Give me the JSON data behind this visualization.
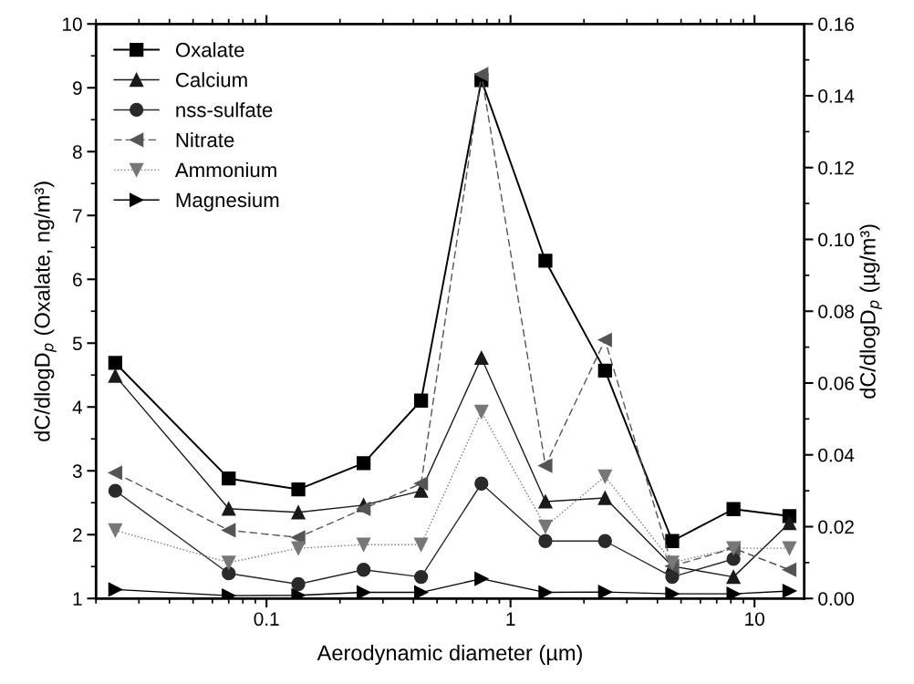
{
  "chart_data": {
    "type": "line",
    "xlabel": "Aerodynamic diameter (µm)",
    "ylabel": "dC/dlogD$_{p}$ (Oxalate, ng/m³)",
    "y2label": "dC/dlogD$_{p}$ (µg/m³)",
    "x": [
      0.024,
      0.07,
      0.135,
      0.25,
      0.43,
      0.76,
      1.39,
      2.44,
      4.6,
      8.2,
      13.9
    ],
    "log": "x",
    "xlim": [
      0.02,
      16
    ],
    "xticks": [
      {
        "value": 0.1,
        "label": "0.1"
      },
      1,
      10
    ],
    "ylim": [
      1,
      10
    ],
    "yticks": [
      1,
      2,
      3,
      4,
      5,
      6,
      7,
      8,
      9,
      10
    ],
    "y2lim": [
      0,
      0.16
    ],
    "y2ticks": [
      {
        "value": 0,
        "label": "0.00"
      },
      {
        "value": 0.02,
        "label": "0.02"
      },
      {
        "value": 0.04,
        "label": "0.04"
      },
      {
        "value": 0.06,
        "label": "0.06"
      },
      {
        "value": 0.08,
        "label": "0.08"
      },
      {
        "value": 0.1,
        "label": "0.10"
      },
      {
        "value": 0.12,
        "label": "0.12"
      },
      {
        "value": 0.14,
        "label": "0.14"
      },
      {
        "value": 0.16,
        "label": "0.16"
      }
    ],
    "grid": false,
    "legend": "top left",
    "series": [
      {
        "name": "Oxalate",
        "color": "#000000",
        "marker": "square",
        "line_style": "solid",
        "values": [
          4.69,
          2.88,
          2.71,
          3.12,
          4.1,
          9.12,
          6.29,
          4.57,
          1.9,
          2.4,
          2.29
        ]
      },
      {
        "name": "Calcium",
        "color": "#1a1a1a",
        "marker": "triangle",
        "line_style": "solid",
        "axis": "y2",
        "values": [
          0.062,
          0.025,
          0.024,
          0.026,
          0.03,
          0.067,
          0.027,
          0.028,
          0.009,
          0.006,
          0.021
        ]
      },
      {
        "name": "nss-sulfate",
        "color": "#2a2a2a",
        "marker": "circle",
        "line_style": "solid",
        "axis": "y2",
        "values": [
          0.03,
          0.007,
          0.004,
          0.008,
          0.006,
          0.032,
          0.016,
          0.016,
          0.006,
          0.011,
          null
        ]
      },
      {
        "name": "Nitrate",
        "color": "#555555",
        "marker": "triangle-left",
        "line_style": "dashed",
        "axis": "y2",
        "values": [
          0.035,
          0.019,
          0.017,
          0.025,
          0.032,
          0.146,
          0.037,
          0.072,
          0.009,
          0.014,
          0.008
        ]
      },
      {
        "name": "Ammonium",
        "color": "#777777",
        "marker": "triangle-down",
        "line_style": "dotted",
        "axis": "y2",
        "values": [
          0.019,
          0.01,
          0.014,
          0.015,
          0.015,
          0.052,
          0.02,
          0.034,
          0.01,
          0.014,
          0.014
        ]
      },
      {
        "name": "Magnesium",
        "color": "#000000",
        "marker": "triangle-right",
        "line_style": "solid",
        "axis": "y2",
        "values": [
          0.0025,
          0.0008,
          0.0009,
          0.0017,
          0.0017,
          0.0055,
          0.0017,
          0.0018,
          0.0013,
          0.0013,
          0.0021
        ]
      }
    ]
  }
}
